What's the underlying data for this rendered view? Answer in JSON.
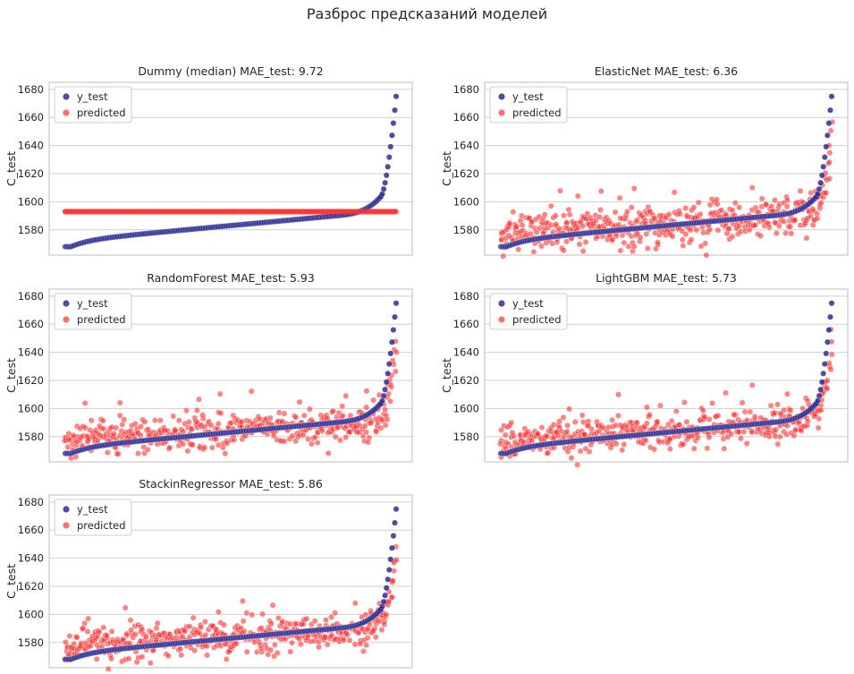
{
  "suptitle": "Разброс предсказаний моделей",
  "colors": {
    "y_test": "#1f1f8c",
    "predicted": "#ff3030",
    "grid": "#cfcfcf",
    "frame": "#c8c8c8"
  },
  "chart_data": [
    {
      "type": "scatter",
      "title": "Dummy (median)  MAE_test: 9.72",
      "ylabel": "C_test",
      "ylim": [
        1562,
        1685
      ],
      "yticks": [
        1580,
        1600,
        1620,
        1640,
        1660,
        1680
      ],
      "grid": "horizontal",
      "legend": "top-left",
      "series": [
        {
          "name": "y_test",
          "shape": "sorted-ascending",
          "start": 1568,
          "end": 1680,
          "n": 240
        },
        {
          "name": "predicted",
          "shape": "constant",
          "value": 1593,
          "n": 240
        }
      ]
    },
    {
      "type": "scatter",
      "title": "ElasticNet  MAE_test: 6.36",
      "ylabel": "C_test",
      "ylim": [
        1562,
        1685
      ],
      "yticks": [
        1580,
        1600,
        1620,
        1640,
        1660,
        1680
      ],
      "grid": "horizontal",
      "legend": "top-left",
      "series": [
        {
          "name": "y_test",
          "shape": "sorted-ascending",
          "start": 1568,
          "end": 1680,
          "n": 240
        },
        {
          "name": "predicted",
          "shape": "noisy-around-y_test",
          "spread": 7,
          "n": 480
        }
      ]
    },
    {
      "type": "scatter",
      "title": "RandomForest  MAE_test: 5.93",
      "ylabel": "C_test",
      "ylim": [
        1562,
        1685
      ],
      "yticks": [
        1580,
        1600,
        1620,
        1640,
        1660,
        1680
      ],
      "grid": "horizontal",
      "legend": "top-left",
      "series": [
        {
          "name": "y_test",
          "shape": "sorted-ascending",
          "start": 1568,
          "end": 1680,
          "n": 240
        },
        {
          "name": "predicted",
          "shape": "noisy-around-y_test",
          "spread": 6,
          "n": 480
        }
      ]
    },
    {
      "type": "scatter",
      "title": "LightGBM  MAE_test: 5.73",
      "ylabel": "C_test",
      "ylim": [
        1562,
        1685
      ],
      "yticks": [
        1580,
        1600,
        1620,
        1640,
        1660,
        1680
      ],
      "grid": "horizontal",
      "legend": "top-left",
      "series": [
        {
          "name": "y_test",
          "shape": "sorted-ascending",
          "start": 1568,
          "end": 1680,
          "n": 240
        },
        {
          "name": "predicted",
          "shape": "noisy-around-y_test",
          "spread": 5.5,
          "n": 480
        }
      ]
    },
    {
      "type": "scatter",
      "title": "StackinRegressor  MAE_test: 5.86",
      "ylabel": "C_test",
      "ylim": [
        1562,
        1685
      ],
      "yticks": [
        1580,
        1600,
        1620,
        1640,
        1660,
        1680
      ],
      "grid": "horizontal",
      "legend": "top-left",
      "series": [
        {
          "name": "y_test",
          "shape": "sorted-ascending",
          "start": 1568,
          "end": 1680,
          "n": 240
        },
        {
          "name": "predicted",
          "shape": "noisy-around-y_test",
          "spread": 6,
          "n": 480
        }
      ]
    }
  ]
}
